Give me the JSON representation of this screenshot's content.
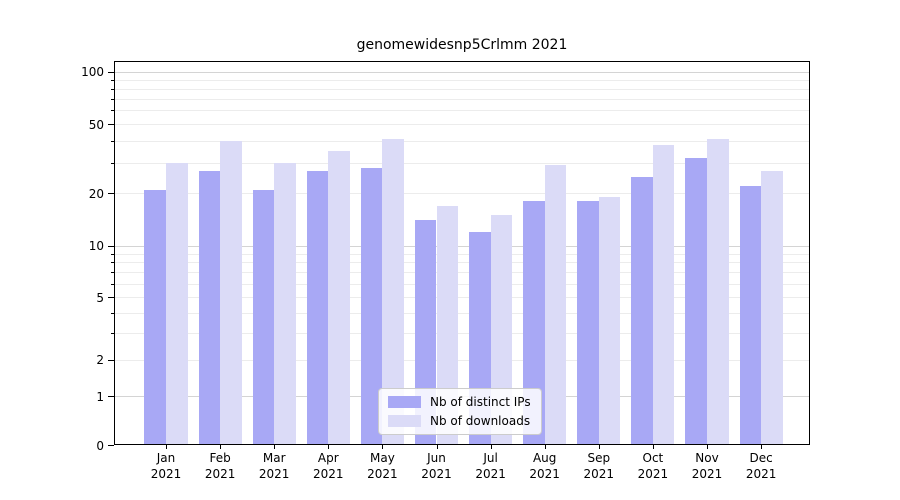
{
  "chart_data": {
    "type": "bar",
    "title": "genomewidesnp5Crlmm 2021",
    "categories": [
      "Jan 2021",
      "Feb 2021",
      "Mar 2021",
      "Apr 2021",
      "May 2021",
      "Jun 2021",
      "Jul 2021",
      "Aug 2021",
      "Sep 2021",
      "Oct 2021",
      "Nov 2021",
      "Dec 2021"
    ],
    "series": [
      {
        "name": "Nb of distinct IPs",
        "color": "#a8a8f5",
        "values": [
          21,
          27,
          21,
          27,
          28,
          14,
          12,
          18,
          18,
          25,
          32,
          22
        ]
      },
      {
        "name": "Nb of downloads",
        "color": "#dbdbf7",
        "values": [
          30,
          40,
          30,
          35,
          41,
          17,
          15,
          29,
          19,
          38,
          41,
          27
        ]
      }
    ],
    "yticks": [
      0,
      1,
      2,
      5,
      10,
      20,
      50,
      100
    ],
    "major_gridlines": [
      1,
      10,
      100
    ],
    "minor_gridlines": [
      2,
      3,
      4,
      5,
      6,
      7,
      8,
      9,
      20,
      30,
      40,
      50,
      60,
      70,
      80,
      90
    ],
    "ylim": [
      0,
      115
    ],
    "scale": "asinh",
    "grid": true,
    "legend_position": "lower center",
    "colors": {
      "major_grid": "#d4d4d4",
      "minor_grid": "#ececec",
      "axis": "#000000",
      "text": "#000000"
    }
  }
}
